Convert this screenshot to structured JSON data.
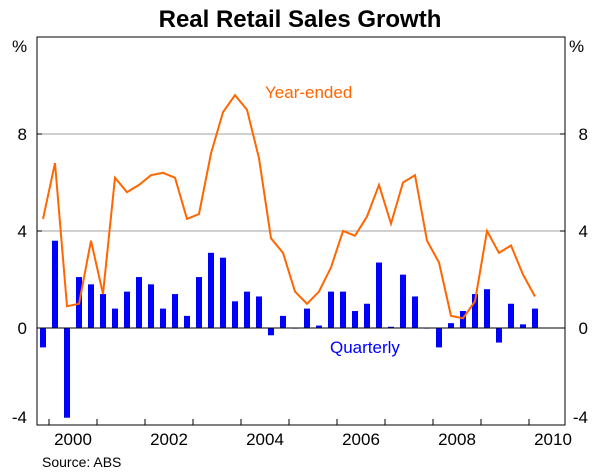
{
  "chart_data": {
    "type": "bar+line",
    "title": "Real Retail Sales Growth",
    "units_left": "%",
    "units_right": "%",
    "ylim": [
      -4,
      12
    ],
    "y_ticks": [
      -4,
      0,
      4,
      8
    ],
    "x_tick_labels": [
      "2000",
      "2002",
      "2004",
      "2006",
      "2008",
      "2010"
    ],
    "x_tick_years": [
      2000,
      2002,
      2004,
      2006,
      2008,
      2010
    ],
    "x_start": 1999.75,
    "x_end": 2010.75,
    "source": "Source: ABS",
    "colors": {
      "quarterly": "#0000ff",
      "year_ended": "#ff6600",
      "axis": "#000000",
      "grid": "#a0a0a0"
    },
    "series": [
      {
        "name": "Quarterly",
        "type": "bar",
        "start_year": 1999.75,
        "step": 0.25,
        "values": [
          -0.8,
          3.6,
          -3.7,
          2.1,
          1.8,
          1.4,
          0.8,
          1.5,
          2.1,
          1.8,
          0.8,
          1.4,
          0.5,
          2.1,
          3.1,
          2.9,
          1.1,
          1.5,
          1.3,
          -0.3,
          0.5,
          0.0,
          0.8,
          0.1,
          1.5,
          1.5,
          0.7,
          1.0,
          2.7,
          0.05,
          2.2,
          1.3,
          0.0,
          -0.8,
          0.2,
          0.7,
          1.4,
          1.6,
          -0.6,
          1.0,
          0.15,
          0.8
        ]
      },
      {
        "name": "Year-ended",
        "type": "line",
        "start_year": 1999.75,
        "step": 0.25,
        "values": [
          4.5,
          6.8,
          0.9,
          1.0,
          3.6,
          1.4,
          6.2,
          5.6,
          5.9,
          6.3,
          6.4,
          6.2,
          4.5,
          4.7,
          7.2,
          8.9,
          9.6,
          9.0,
          7.0,
          3.7,
          3.1,
          1.5,
          1.0,
          1.5,
          2.5,
          4.0,
          3.8,
          4.6,
          5.9,
          4.3,
          6.0,
          6.3,
          3.6,
          2.7,
          0.5,
          0.4,
          1.1,
          4.0,
          3.1,
          3.4,
          2.2,
          1.3
        ]
      }
    ],
    "annotations": [
      {
        "text": "Year-ended",
        "series": "Year-ended"
      },
      {
        "text": "Quarterly",
        "series": "Quarterly"
      }
    ]
  }
}
